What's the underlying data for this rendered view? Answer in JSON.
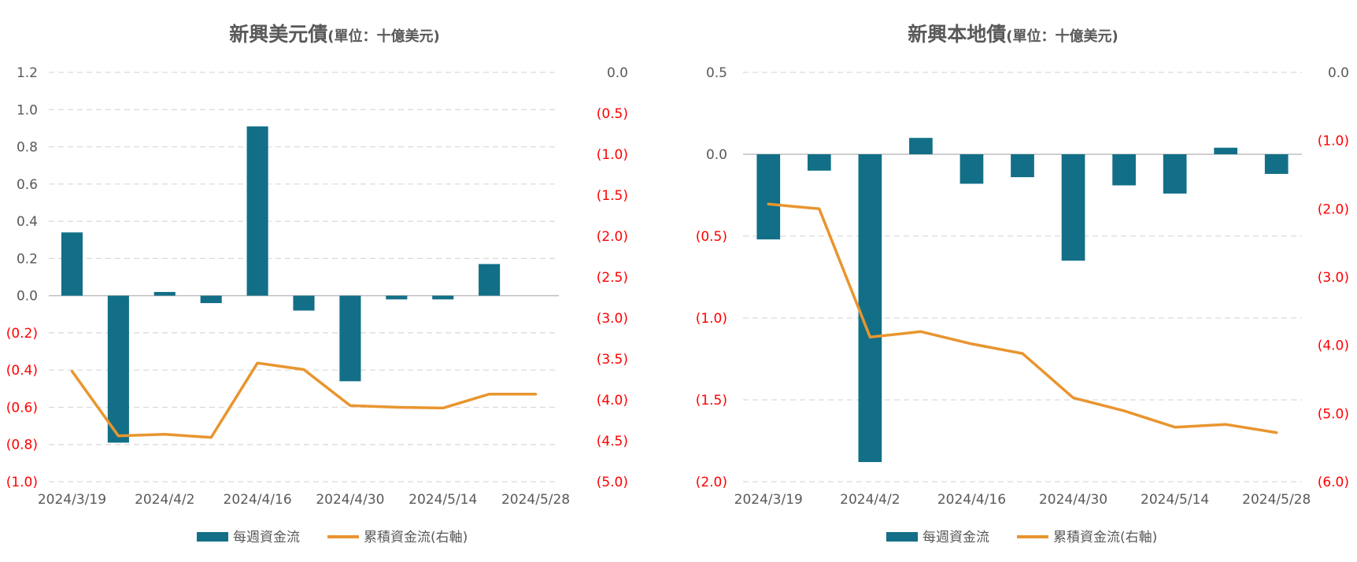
{
  "colors": {
    "bar": "#126f87",
    "line": "#e8952f",
    "grid": "#d9d9d9",
    "axis_text": "#595959",
    "negative_text": "#ff0000"
  },
  "chart_data": [
    {
      "type": "bar+line",
      "title": "新興美元債",
      "title_unit": "(單位：十億美元)",
      "x": [
        "2024/3/19",
        "2024/3/26",
        "2024/4/2",
        "2024/4/9",
        "2024/4/16",
        "2024/4/23",
        "2024/4/30",
        "2024/5/7",
        "2024/5/14",
        "2024/5/21",
        "2024/5/28"
      ],
      "x_tick_labels": [
        "2024/3/19",
        "2024/4/2",
        "2024/4/16",
        "2024/4/30",
        "2024/5/14",
        "2024/5/28"
      ],
      "series": [
        {
          "name": "每週資金流",
          "kind": "bar",
          "axis": "left",
          "values": [
            0.34,
            -0.79,
            0.02,
            -0.04,
            0.91,
            -0.08,
            -0.46,
            -0.02,
            -0.02,
            0.17,
            null
          ]
        },
        {
          "name": "累積資金流(右軸)",
          "kind": "line",
          "axis": "right",
          "values": [
            -3.65,
            -4.44,
            -4.42,
            -4.46,
            -3.55,
            -3.63,
            -4.07,
            -4.09,
            -4.1,
            -3.93,
            -3.93
          ]
        }
      ],
      "left_axis": {
        "min": -1.0,
        "max": 1.2,
        "step": 0.2,
        "tick_labels": [
          "(1.0)",
          "(0.8)",
          "(0.6)",
          "(0.4)",
          "(0.2)",
          "0.0",
          "0.2",
          "0.4",
          "0.6",
          "0.8",
          "1.0",
          "1.2"
        ]
      },
      "right_axis": {
        "min": -5.0,
        "max": 0.0,
        "step": 0.5,
        "tick_labels": [
          "(5.0)",
          "(4.5)",
          "(4.0)",
          "(3.5)",
          "(3.0)",
          "(2.5)",
          "(2.0)",
          "(1.5)",
          "(1.0)",
          "(0.5)",
          "0.0"
        ]
      },
      "legend": [
        "每週資金流",
        "累積資金流(右軸)"
      ],
      "legend_position": "bottom",
      "grid": true
    },
    {
      "type": "bar+line",
      "title": "新興本地債",
      "title_unit": "(單位：十億美元)",
      "x": [
        "2024/3/19",
        "2024/3/26",
        "2024/4/2",
        "2024/4/9",
        "2024/4/16",
        "2024/4/23",
        "2024/4/30",
        "2024/5/7",
        "2024/5/14",
        "2024/5/21",
        "2024/5/28"
      ],
      "x_tick_labels": [
        "2024/3/19",
        "2024/4/2",
        "2024/4/16",
        "2024/4/30",
        "2024/5/14",
        "2024/5/28"
      ],
      "series": [
        {
          "name": "每週資金流",
          "kind": "bar",
          "axis": "left",
          "values": [
            -0.52,
            -0.1,
            -1.88,
            0.1,
            -0.18,
            -0.14,
            -0.65,
            -0.19,
            -0.24,
            0.04,
            -0.12
          ]
        },
        {
          "name": "累積資金流(右軸)",
          "kind": "line",
          "axis": "right",
          "values": [
            -1.93,
            -2.0,
            -3.88,
            -3.8,
            -3.98,
            -4.12,
            -4.77,
            -4.96,
            -5.2,
            -5.16,
            -5.28
          ]
        }
      ],
      "left_axis": {
        "min": -2.0,
        "max": 0.5,
        "step": 0.5,
        "tick_labels": [
          "(2.0)",
          "(1.5)",
          "(1.0)",
          "(0.5)",
          "0.0",
          "0.5"
        ]
      },
      "right_axis": {
        "min": -6.0,
        "max": 0.0,
        "step": 1.0,
        "tick_labels": [
          "(6.0)",
          "(5.0)",
          "(4.0)",
          "(3.0)",
          "(2.0)",
          "(1.0)",
          "0.0"
        ]
      },
      "legend": [
        "每週資金流",
        "累積資金流(右軸)"
      ],
      "legend_position": "bottom",
      "grid": true
    }
  ]
}
